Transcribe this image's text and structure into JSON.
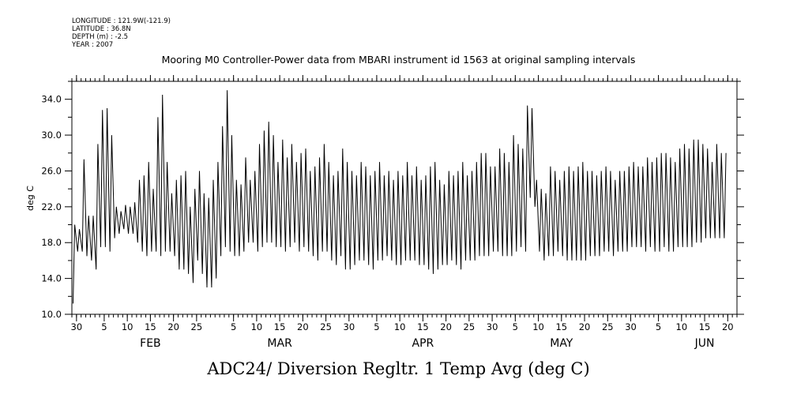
{
  "meta": {
    "longitude": "LONGITUDE : 121.9W(-121.9)",
    "latitude": "LATITUDE : 36.8N",
    "depth": "DEPTH (m) : -2.5",
    "year": "YEAR : 2007"
  },
  "chart_data": {
    "type": "line",
    "title": "Mooring M0 Controller-Power data from MBARI instrument id 1563 at original sampling intervals",
    "xlabel": "ADC24/ Diversion Regltr. 1 Temp Avg (deg C)",
    "ylabel": "deg C",
    "ylim": [
      10.0,
      36.0
    ],
    "y_ticks": [
      "10.0",
      "14.0",
      "18.0",
      "22.0",
      "26.0",
      "30.0",
      "34.0"
    ],
    "y_tick_values": [
      10,
      14,
      18,
      22,
      26,
      30,
      34
    ],
    "xlim": [
      "2007-01-29",
      "2007-06-22"
    ],
    "x_day_ticks": [
      {
        "date": "2007-01-30",
        "label": "30"
      },
      {
        "date": "2007-02-05",
        "label": "5"
      },
      {
        "date": "2007-02-10",
        "label": "10"
      },
      {
        "date": "2007-02-15",
        "label": "15"
      },
      {
        "date": "2007-02-20",
        "label": "20"
      },
      {
        "date": "2007-02-25",
        "label": "25"
      },
      {
        "date": "2007-03-05",
        "label": "5"
      },
      {
        "date": "2007-03-10",
        "label": "10"
      },
      {
        "date": "2007-03-15",
        "label": "15"
      },
      {
        "date": "2007-03-20",
        "label": "20"
      },
      {
        "date": "2007-03-25",
        "label": "25"
      },
      {
        "date": "2007-03-30",
        "label": "30"
      },
      {
        "date": "2007-04-05",
        "label": "5"
      },
      {
        "date": "2007-04-10",
        "label": "10"
      },
      {
        "date": "2007-04-15",
        "label": "15"
      },
      {
        "date": "2007-04-20",
        "label": "20"
      },
      {
        "date": "2007-04-25",
        "label": "25"
      },
      {
        "date": "2007-04-30",
        "label": "30"
      },
      {
        "date": "2007-05-05",
        "label": "5"
      },
      {
        "date": "2007-05-10",
        "label": "10"
      },
      {
        "date": "2007-05-15",
        "label": "15"
      },
      {
        "date": "2007-05-20",
        "label": "20"
      },
      {
        "date": "2007-05-25",
        "label": "25"
      },
      {
        "date": "2007-05-30",
        "label": "30"
      },
      {
        "date": "2007-06-05",
        "label": "5"
      },
      {
        "date": "2007-06-10",
        "label": "10"
      },
      {
        "date": "2007-06-15",
        "label": "15"
      },
      {
        "date": "2007-06-20",
        "label": "20"
      }
    ],
    "x_month_labels": [
      {
        "date": "2007-02-15",
        "label": "FEB"
      },
      {
        "date": "2007-03-15",
        "label": "MAR"
      },
      {
        "date": "2007-04-15",
        "label": "APR"
      },
      {
        "date": "2007-05-15",
        "label": "MAY"
      },
      {
        "date": "2007-06-15",
        "label": "JUN"
      }
    ],
    "daily_extremes": {
      "start_date": "2007-01-29",
      "dates": [
        "2007-01-29",
        "2007-01-30",
        "2007-01-31",
        "2007-02-01",
        "2007-02-02",
        "2007-02-03",
        "2007-02-04",
        "2007-02-05",
        "2007-02-06",
        "2007-02-07",
        "2007-02-08",
        "2007-02-09",
        "2007-02-10",
        "2007-02-11",
        "2007-02-12",
        "2007-02-13",
        "2007-02-14",
        "2007-02-15",
        "2007-02-16",
        "2007-02-17",
        "2007-02-18",
        "2007-02-19",
        "2007-02-20",
        "2007-02-21",
        "2007-02-22",
        "2007-02-23",
        "2007-02-24",
        "2007-02-25",
        "2007-02-26",
        "2007-02-27",
        "2007-02-28",
        "2007-03-01",
        "2007-03-02",
        "2007-03-03",
        "2007-03-04",
        "2007-03-05",
        "2007-03-06",
        "2007-03-07",
        "2007-03-08",
        "2007-03-09",
        "2007-03-10",
        "2007-03-11",
        "2007-03-12",
        "2007-03-13",
        "2007-03-14",
        "2007-03-15",
        "2007-03-16",
        "2007-03-17",
        "2007-03-18",
        "2007-03-19",
        "2007-03-20",
        "2007-03-21",
        "2007-03-22",
        "2007-03-23",
        "2007-03-24",
        "2007-03-25",
        "2007-03-26",
        "2007-03-27",
        "2007-03-28",
        "2007-03-29",
        "2007-03-30",
        "2007-03-31",
        "2007-04-01",
        "2007-04-02",
        "2007-04-03",
        "2007-04-04",
        "2007-04-05",
        "2007-04-06",
        "2007-04-07",
        "2007-04-08",
        "2007-04-09",
        "2007-04-10",
        "2007-04-11",
        "2007-04-12",
        "2007-04-13",
        "2007-04-14",
        "2007-04-15",
        "2007-04-16",
        "2007-04-17",
        "2007-04-18",
        "2007-04-19",
        "2007-04-20",
        "2007-04-21",
        "2007-04-22",
        "2007-04-23",
        "2007-04-24",
        "2007-04-25",
        "2007-04-26",
        "2007-04-27",
        "2007-04-28",
        "2007-04-29",
        "2007-04-30",
        "2007-05-01",
        "2007-05-02",
        "2007-05-03",
        "2007-05-04",
        "2007-05-05",
        "2007-05-06",
        "2007-05-07",
        "2007-05-08",
        "2007-05-09",
        "2007-05-10",
        "2007-05-11",
        "2007-05-12",
        "2007-05-13",
        "2007-05-14",
        "2007-05-15",
        "2007-05-16",
        "2007-05-17",
        "2007-05-18",
        "2007-05-19",
        "2007-05-20",
        "2007-05-21",
        "2007-05-22",
        "2007-05-23",
        "2007-05-24",
        "2007-05-25",
        "2007-05-26",
        "2007-05-27",
        "2007-05-28",
        "2007-05-29",
        "2007-05-30",
        "2007-05-31",
        "2007-06-01",
        "2007-06-02",
        "2007-06-03",
        "2007-06-04",
        "2007-06-05",
        "2007-06-06",
        "2007-06-07",
        "2007-06-08",
        "2007-06-09",
        "2007-06-10",
        "2007-06-11",
        "2007-06-12",
        "2007-06-13",
        "2007-06-14",
        "2007-06-15",
        "2007-06-16",
        "2007-06-17",
        "2007-06-18",
        "2007-06-19",
        "2007-06-20",
        "2007-06-21"
      ],
      "max": [
        20.0,
        19.5,
        27.3,
        21.0,
        21.0,
        29.0,
        32.8,
        33.0,
        30.0,
        22.0,
        21.5,
        22.2,
        22.0,
        22.5,
        25.0,
        25.5,
        27.0,
        24.0,
        32.0,
        34.5,
        27.0,
        23.5,
        25.0,
        25.5,
        26.0,
        22.0,
        24.0,
        26.0,
        23.5,
        23.0,
        25.0,
        27.0,
        31.0,
        35.0,
        30.0,
        25.0,
        24.5,
        27.5,
        25.0,
        26.0,
        29.0,
        30.5,
        31.5,
        30.0,
        27.0,
        29.5,
        27.5,
        29.0,
        27.0,
        28.0,
        28.5,
        26.0,
        26.5,
        27.5,
        29.0,
        27.0,
        25.5,
        26.0,
        28.5,
        27.0,
        26.0,
        25.5,
        27.0,
        26.5,
        25.5,
        26.0,
        27.0,
        25.5,
        26.0,
        25.0,
        26.0,
        25.5,
        27.0,
        25.5,
        26.5,
        25.0,
        25.5,
        26.5,
        27.0,
        25.0,
        24.5,
        26.0,
        25.5,
        26.0,
        27.0,
        25.5,
        26.0,
        27.0,
        28.0,
        28.0,
        26.5,
        26.5,
        28.5,
        28.0,
        27.0,
        30.0,
        29.0,
        28.5,
        33.3,
        33.0,
        25.0,
        24.0,
        23.5,
        26.5,
        26.0,
        25.0,
        26.0,
        26.5,
        26.0,
        26.5,
        27.0,
        26.0,
        26.0,
        25.5,
        26.0,
        26.5,
        26.0,
        25.0,
        26.0,
        26.0,
        26.5,
        27.0,
        26.5,
        26.5,
        27.5,
        27.0,
        27.5,
        28.0,
        28.0,
        27.5,
        27.0,
        28.5,
        29.0,
        28.5,
        29.5,
        29.5,
        29.0,
        28.5,
        27.0,
        29.0,
        28.0,
        28.0
      ],
      "min": [
        11.2,
        17.0,
        17.0,
        16.5,
        16.0,
        15.0,
        17.5,
        17.5,
        17.0,
        18.5,
        19.0,
        19.5,
        19.0,
        19.0,
        18.0,
        17.0,
        16.5,
        17.0,
        17.0,
        16.5,
        17.0,
        17.0,
        16.5,
        15.0,
        15.0,
        14.5,
        13.5,
        16.0,
        14.5,
        13.0,
        13.0,
        14.0,
        16.5,
        17.5,
        17.0,
        16.5,
        16.5,
        17.0,
        18.0,
        18.0,
        17.0,
        17.5,
        18.0,
        18.0,
        17.5,
        17.5,
        17.0,
        17.5,
        18.0,
        17.0,
        17.5,
        17.0,
        16.5,
        16.0,
        17.0,
        17.0,
        16.0,
        15.5,
        16.5,
        15.0,
        15.0,
        15.5,
        16.0,
        16.0,
        15.5,
        15.0,
        16.0,
        16.0,
        16.5,
        16.0,
        15.5,
        15.5,
        16.0,
        16.0,
        16.0,
        15.5,
        15.5,
        15.0,
        14.5,
        15.0,
        15.5,
        15.5,
        16.0,
        15.5,
        15.0,
        16.0,
        16.0,
        16.0,
        16.5,
        16.5,
        16.5,
        17.0,
        17.0,
        16.5,
        16.5,
        16.5,
        17.0,
        17.5,
        17.0,
        23.0,
        22.0,
        17.0,
        16.0,
        16.5,
        16.5,
        17.0,
        16.5,
        16.0,
        16.0,
        16.0,
        16.0,
        16.0,
        16.5,
        16.5,
        16.5,
        17.0,
        17.0,
        16.5,
        17.0,
        17.0,
        17.0,
        17.5,
        17.5,
        17.5,
        17.0,
        17.5,
        17.0,
        17.0,
        17.5,
        17.0,
        17.0,
        17.5,
        17.5,
        17.5,
        17.5,
        18.0,
        18.0,
        18.5,
        18.5,
        18.5,
        18.5,
        18.5
      ]
    }
  }
}
